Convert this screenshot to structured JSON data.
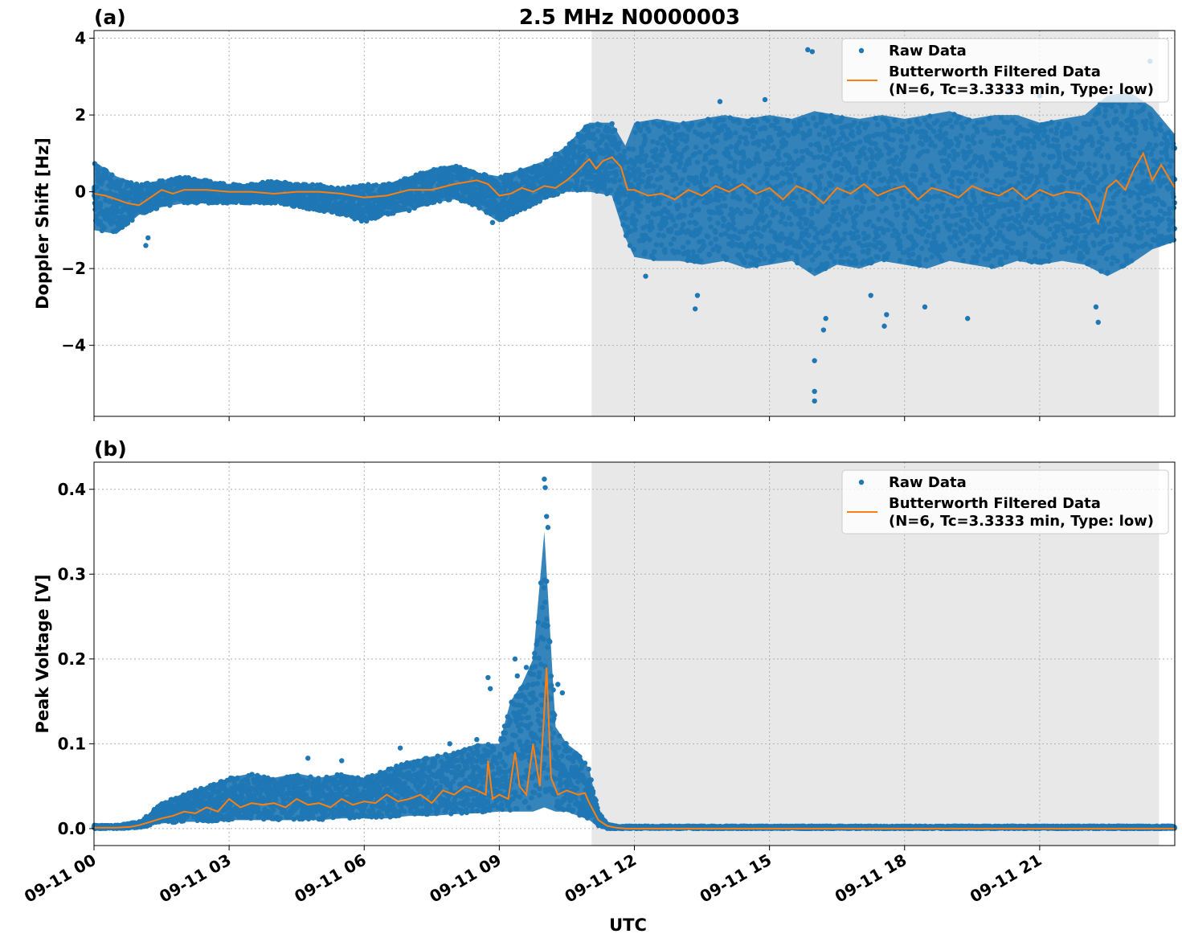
{
  "figure": {
    "title": "2.5 MHz N0000003",
    "xlabel": "UTC"
  },
  "colors": {
    "raw": "#1f77b4",
    "filtered": "#ff7f0e",
    "shade": "#e8e8e8",
    "grid": "#b0b0b0"
  },
  "legend": {
    "raw_label": "Raw Data",
    "filtered_label_line1": "Butterworth Filtered Data",
    "filtered_label_line2": "(N=6, Tc=3.3333 min, Type: low)",
    "placement": "top-right"
  },
  "chart_data": [
    {
      "panel": "(a)",
      "type": "scatter",
      "title": "2.5 MHz N0000003",
      "ylabel": "Doppler Shift [Hz]",
      "xlabel": "",
      "xlim_hours": [
        0,
        24
      ],
      "ylim": [
        -5.85,
        4.2
      ],
      "yticks": [
        4,
        2,
        0,
        -2,
        -4
      ],
      "ytick_labels": [
        "4",
        "2",
        "0",
        "−2",
        "−4"
      ],
      "shaded_region_hours": [
        11.05,
        23.65
      ],
      "grid": true,
      "series": [
        {
          "name": "Raw Data",
          "style": "points",
          "x_hours": [
            0,
            0.5,
            1,
            1.5,
            2,
            2.5,
            3,
            3.5,
            4,
            4.5,
            5,
            5.5,
            6,
            6.5,
            7,
            7.5,
            8,
            8.5,
            9,
            9.5,
            10,
            10.5,
            10.8,
            11,
            11.5,
            11.8,
            12,
            12.5,
            13,
            13.5,
            14,
            14.5,
            15,
            15.5,
            16,
            16.5,
            17,
            17.5,
            18,
            18.5,
            19,
            19.5,
            20,
            20.5,
            21,
            21.5,
            22,
            22.5,
            23,
            23.5,
            24
          ],
          "y_upper": [
            0.8,
            0.4,
            0.2,
            0.3,
            0.4,
            0.3,
            0.2,
            0.2,
            0.3,
            0.2,
            0.2,
            0.1,
            0.2,
            0.2,
            0.4,
            0.6,
            0.7,
            0.5,
            0.4,
            0.6,
            0.8,
            1.2,
            1.6,
            1.8,
            1.8,
            1.2,
            1.8,
            1.9,
            1.8,
            1.9,
            2.0,
            1.9,
            2.0,
            1.9,
            2.1,
            2.0,
            1.9,
            2.0,
            1.9,
            2.0,
            2.1,
            1.9,
            2.0,
            2.0,
            1.8,
            1.9,
            2.0,
            2.5,
            2.6,
            2.2,
            1.5
          ],
          "y_lower": [
            -1.0,
            -1.1,
            -0.6,
            -0.4,
            -0.3,
            -0.3,
            -0.3,
            -0.3,
            -0.3,
            -0.4,
            -0.5,
            -0.6,
            -0.8,
            -0.6,
            -0.5,
            -0.3,
            -0.2,
            -0.4,
            -0.8,
            -0.5,
            -0.2,
            0.0,
            0.0,
            0.0,
            -0.1,
            -1.2,
            -1.7,
            -1.8,
            -1.8,
            -1.9,
            -1.8,
            -2.0,
            -1.9,
            -1.8,
            -2.2,
            -1.9,
            -2.0,
            -1.8,
            -1.9,
            -2.0,
            -1.8,
            -1.9,
            -2.0,
            -1.8,
            -1.9,
            -1.8,
            -1.9,
            -2.2,
            -1.9,
            -1.5,
            -1.3
          ],
          "outliers": [
            [
              15.85,
              3.7
            ],
            [
              15.95,
              3.65
            ],
            [
              16.0,
              -4.4
            ],
            [
              16.0,
              -5.2
            ],
            [
              16.0,
              -5.45
            ],
            [
              16.2,
              -3.6
            ],
            [
              16.25,
              -3.3
            ],
            [
              13.35,
              -3.05
            ],
            [
              13.4,
              -2.7
            ],
            [
              17.25,
              -2.7
            ],
            [
              17.55,
              -3.5
            ],
            [
              17.6,
              -3.2
            ],
            [
              18.45,
              -3.0
            ],
            [
              19.4,
              -3.3
            ],
            [
              22.3,
              -3.4
            ],
            [
              22.25,
              -3.0
            ],
            [
              23.45,
              3.4
            ],
            [
              12.25,
              -2.2
            ],
            [
              13.9,
              2.35
            ],
            [
              14.9,
              2.4
            ],
            [
              21.0,
              2.5
            ],
            [
              20.3,
              2.6
            ],
            [
              1.15,
              -1.4
            ],
            [
              1.2,
              -1.2
            ],
            [
              8.85,
              -0.8
            ]
          ]
        },
        {
          "name": "Butterworth Filtered Data",
          "style": "line",
          "x_hours": [
            0,
            0.25,
            0.5,
            0.75,
            1,
            1.25,
            1.5,
            1.75,
            2,
            2.5,
            3,
            3.5,
            4,
            4.5,
            5,
            5.5,
            6,
            6.5,
            7,
            7.5,
            8,
            8.25,
            8.5,
            8.75,
            9,
            9.25,
            9.5,
            9.75,
            10,
            10.25,
            10.5,
            10.7,
            10.9,
            11,
            11.15,
            11.3,
            11.5,
            11.7,
            11.85,
            12,
            12.3,
            12.6,
            12.9,
            13.2,
            13.5,
            13.8,
            14.1,
            14.4,
            14.7,
            15,
            15.3,
            15.6,
            15.9,
            16.2,
            16.5,
            16.8,
            17.1,
            17.4,
            17.7,
            18,
            18.3,
            18.6,
            18.9,
            19.2,
            19.5,
            19.8,
            20.1,
            20.4,
            20.7,
            21,
            21.3,
            21.6,
            21.9,
            22.1,
            22.3,
            22.5,
            22.7,
            22.9,
            23.1,
            23.3,
            23.5,
            23.7,
            24
          ],
          "y": [
            -0.05,
            -0.1,
            -0.2,
            -0.3,
            -0.35,
            -0.15,
            0.05,
            -0.05,
            0.05,
            0.05,
            0.0,
            0.0,
            -0.05,
            0.0,
            0.0,
            -0.05,
            -0.15,
            -0.1,
            0.05,
            0.05,
            0.2,
            0.25,
            0.3,
            0.2,
            -0.1,
            -0.05,
            0.1,
            0.0,
            0.15,
            0.1,
            0.3,
            0.5,
            0.75,
            0.85,
            0.6,
            0.8,
            0.9,
            0.65,
            0.05,
            0.05,
            -0.1,
            -0.05,
            -0.2,
            0.05,
            -0.1,
            0.15,
            0.0,
            0.2,
            -0.05,
            0.1,
            -0.2,
            0.15,
            0.0,
            -0.3,
            0.1,
            -0.05,
            0.2,
            -0.1,
            0.05,
            0.15,
            -0.2,
            0.1,
            0.0,
            -0.15,
            0.15,
            0.0,
            -0.1,
            0.1,
            -0.2,
            0.05,
            -0.1,
            0.0,
            -0.05,
            -0.25,
            -0.8,
            0.1,
            0.3,
            0.05,
            0.6,
            1.0,
            0.3,
            0.7,
            0.1
          ]
        }
      ]
    },
    {
      "panel": "(b)",
      "type": "scatter",
      "title": "",
      "ylabel": "Peak Voltage [V]",
      "xlabel": "UTC",
      "xlim_hours": [
        0,
        24
      ],
      "ylim": [
        -0.02,
        0.432
      ],
      "yticks": [
        0.4,
        0.3,
        0.2,
        0.1,
        0.0
      ],
      "ytick_labels": [
        "0.4",
        "0.3",
        "0.2",
        "0.1",
        "0.0"
      ],
      "xticks_hours": [
        0,
        3,
        6,
        9,
        12,
        15,
        18,
        21
      ],
      "xtick_labels": [
        "09-11 00",
        "09-11 03",
        "09-11 06",
        "09-11 09",
        "09-11 12",
        "09-11 15",
        "09-11 18",
        "09-11 21"
      ],
      "shaded_region_hours": [
        11.05,
        23.65
      ],
      "grid": true,
      "series": [
        {
          "name": "Raw Data",
          "style": "points",
          "x_hours": [
            0,
            0.5,
            1,
            1.5,
            2,
            2.5,
            3,
            3.5,
            4,
            4.5,
            5,
            5.5,
            6,
            6.5,
            7,
            7.5,
            8,
            8.5,
            9,
            9.25,
            9.5,
            9.75,
            10,
            10.25,
            10.5,
            10.75,
            11,
            11.2,
            11.4,
            11.6,
            12,
            24
          ],
          "y_upper": [
            0.004,
            0.004,
            0.008,
            0.03,
            0.042,
            0.05,
            0.06,
            0.065,
            0.06,
            0.065,
            0.06,
            0.065,
            0.06,
            0.07,
            0.08,
            0.085,
            0.09,
            0.1,
            0.1,
            0.15,
            0.17,
            0.2,
            0.35,
            0.12,
            0.1,
            0.09,
            0.07,
            0.02,
            0.005,
            0.003,
            0.003,
            0.003
          ],
          "y_lower": [
            0.0,
            0.0,
            0.001,
            0.006,
            0.008,
            0.008,
            0.01,
            0.01,
            0.01,
            0.01,
            0.01,
            0.012,
            0.012,
            0.012,
            0.015,
            0.015,
            0.017,
            0.018,
            0.02,
            0.02,
            0.02,
            0.02,
            0.025,
            0.02,
            0.02,
            0.015,
            0.01,
            0.002,
            0.0,
            0.0,
            0.0,
            0.0
          ],
          "outliers": [
            [
              10.0,
              0.412
            ],
            [
              10.02,
              0.402
            ],
            [
              10.05,
              0.368
            ],
            [
              10.08,
              0.355
            ],
            [
              9.35,
              0.2
            ],
            [
              9.4,
              0.18
            ],
            [
              8.75,
              0.178
            ],
            [
              8.8,
              0.165
            ],
            [
              9.6,
              0.19
            ],
            [
              9.75,
              0.16
            ],
            [
              10.3,
              0.17
            ],
            [
              10.4,
              0.16
            ],
            [
              8.5,
              0.105
            ],
            [
              7.9,
              0.1
            ],
            [
              6.8,
              0.095
            ],
            [
              5.5,
              0.08
            ],
            [
              4.75,
              0.083
            ]
          ]
        },
        {
          "name": "Butterworth Filtered Data",
          "style": "line",
          "x_hours": [
            0,
            0.5,
            0.8,
            1,
            1.25,
            1.5,
            1.75,
            2,
            2.25,
            2.5,
            2.75,
            3,
            3.25,
            3.5,
            3.75,
            4,
            4.25,
            4.5,
            4.75,
            5,
            5.25,
            5.5,
            5.75,
            6,
            6.25,
            6.5,
            6.75,
            7,
            7.25,
            7.5,
            7.75,
            8,
            8.25,
            8.5,
            8.7,
            8.75,
            8.85,
            9,
            9.2,
            9.35,
            9.45,
            9.6,
            9.75,
            9.9,
            10.0,
            10.05,
            10.15,
            10.3,
            10.5,
            10.75,
            10.9,
            11.0,
            11.2,
            11.4,
            11.6,
            11.8,
            12,
            24
          ],
          "y": [
            0.001,
            0.001,
            0.002,
            0.004,
            0.008,
            0.012,
            0.015,
            0.02,
            0.018,
            0.025,
            0.02,
            0.035,
            0.025,
            0.03,
            0.028,
            0.03,
            0.025,
            0.035,
            0.028,
            0.03,
            0.025,
            0.035,
            0.028,
            0.032,
            0.03,
            0.04,
            0.032,
            0.035,
            0.04,
            0.03,
            0.045,
            0.04,
            0.05,
            0.045,
            0.04,
            0.08,
            0.035,
            0.04,
            0.035,
            0.09,
            0.05,
            0.04,
            0.1,
            0.05,
            0.14,
            0.19,
            0.06,
            0.04,
            0.045,
            0.04,
            0.042,
            0.03,
            0.01,
            0.003,
            0.001,
            0.0,
            0.0,
            0.0
          ]
        }
      ]
    }
  ]
}
